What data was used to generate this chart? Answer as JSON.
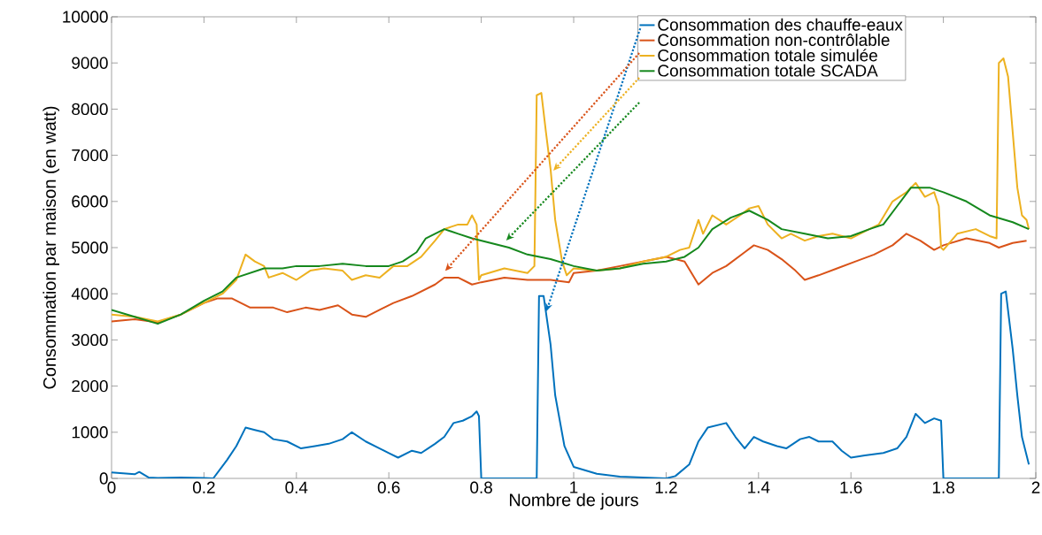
{
  "chart_data": {
    "type": "line",
    "xlabel": "Nombre de jours",
    "ylabel": "Consommation par maison (en watt)",
    "xlim": [
      0,
      2
    ],
    "ylim": [
      0,
      10000
    ],
    "xticks": [
      0,
      0.2,
      0.4,
      0.6,
      0.8,
      1,
      1.2,
      1.4,
      1.6,
      1.8,
      2
    ],
    "yticks": [
      0,
      1000,
      2000,
      3000,
      4000,
      5000,
      6000,
      7000,
      8000,
      9000,
      10000
    ],
    "legend": "top right",
    "series": [
      {
        "name": "Consommation des chauffe-eaux",
        "color": "#0072bd",
        "x": [
          0,
          0.05,
          0.06,
          0.08,
          0.1,
          0.15,
          0.2,
          0.22,
          0.25,
          0.27,
          0.29,
          0.31,
          0.33,
          0.35,
          0.38,
          0.41,
          0.44,
          0.47,
          0.5,
          0.52,
          0.55,
          0.58,
          0.6,
          0.62,
          0.65,
          0.67,
          0.7,
          0.72,
          0.74,
          0.76,
          0.78,
          0.79,
          0.795,
          0.8,
          0.92,
          0.925,
          0.935,
          0.95,
          0.96,
          0.98,
          1.0,
          1.05,
          1.1,
          1.15,
          1.2,
          1.22,
          1.25,
          1.27,
          1.29,
          1.31,
          1.33,
          1.35,
          1.37,
          1.39,
          1.41,
          1.44,
          1.46,
          1.49,
          1.51,
          1.53,
          1.56,
          1.58,
          1.6,
          1.63,
          1.67,
          1.7,
          1.72,
          1.74,
          1.76,
          1.78,
          1.795,
          1.8,
          1.92,
          1.925,
          1.935,
          1.95,
          1.96,
          1.97,
          1.985
        ],
        "values": [
          130,
          90,
          140,
          20,
          10,
          20,
          10,
          0,
          400,
          700,
          1100,
          1050,
          1000,
          850,
          800,
          650,
          700,
          750,
          850,
          1000,
          800,
          650,
          550,
          450,
          600,
          550,
          750,
          900,
          1200,
          1250,
          1350,
          1450,
          1350,
          0,
          0,
          3950,
          3950,
          2900,
          1800,
          700,
          250,
          100,
          40,
          20,
          0,
          50,
          300,
          800,
          1100,
          1150,
          1200,
          900,
          650,
          900,
          800,
          700,
          650,
          850,
          900,
          800,
          800,
          600,
          450,
          500,
          550,
          650,
          900,
          1400,
          1200,
          1300,
          1250,
          0,
          0,
          4000,
          4050,
          2800,
          1800,
          900,
          300
        ]
      },
      {
        "name": "Consommation non-contrôlable",
        "color": "#d95319",
        "x": [
          0,
          0.05,
          0.1,
          0.15,
          0.2,
          0.23,
          0.26,
          0.3,
          0.35,
          0.38,
          0.42,
          0.45,
          0.49,
          0.52,
          0.55,
          0.58,
          0.61,
          0.65,
          0.7,
          0.72,
          0.75,
          0.78,
          0.8,
          0.85,
          0.9,
          0.95,
          0.99,
          1.0,
          1.05,
          1.1,
          1.15,
          1.2,
          1.24,
          1.27,
          1.3,
          1.33,
          1.37,
          1.39,
          1.42,
          1.45,
          1.48,
          1.5,
          1.53,
          1.57,
          1.61,
          1.65,
          1.69,
          1.72,
          1.75,
          1.78,
          1.8,
          1.85,
          1.9,
          1.92,
          1.95,
          1.98
        ],
        "values": [
          3400,
          3450,
          3380,
          3550,
          3800,
          3900,
          3900,
          3700,
          3700,
          3600,
          3700,
          3650,
          3750,
          3550,
          3500,
          3650,
          3800,
          3950,
          4200,
          4350,
          4350,
          4200,
          4250,
          4350,
          4300,
          4300,
          4250,
          4450,
          4500,
          4600,
          4700,
          4800,
          4700,
          4200,
          4450,
          4600,
          4900,
          5050,
          4950,
          4750,
          4500,
          4300,
          4400,
          4550,
          4700,
          4850,
          5050,
          5300,
          5150,
          4950,
          5050,
          5200,
          5100,
          5000,
          5100,
          5150
        ]
      },
      {
        "name": "Consommation totale simulée",
        "color": "#edb120",
        "x": [
          0,
          0.05,
          0.1,
          0.15,
          0.2,
          0.24,
          0.27,
          0.29,
          0.31,
          0.33,
          0.34,
          0.37,
          0.4,
          0.43,
          0.46,
          0.5,
          0.52,
          0.55,
          0.58,
          0.61,
          0.64,
          0.67,
          0.7,
          0.72,
          0.75,
          0.77,
          0.78,
          0.79,
          0.795,
          0.8,
          0.85,
          0.9,
          0.915,
          0.92,
          0.93,
          0.94,
          0.95,
          0.96,
          0.975,
          0.985,
          1.0,
          1.05,
          1.1,
          1.15,
          1.2,
          1.23,
          1.25,
          1.27,
          1.28,
          1.3,
          1.33,
          1.36,
          1.38,
          1.4,
          1.42,
          1.45,
          1.47,
          1.5,
          1.53,
          1.56,
          1.6,
          1.63,
          1.66,
          1.69,
          1.72,
          1.74,
          1.76,
          1.78,
          1.79,
          1.795,
          1.8,
          1.83,
          1.87,
          1.9,
          1.915,
          1.92,
          1.93,
          1.94,
          1.95,
          1.96,
          1.97,
          1.98,
          1.985
        ],
        "values": [
          3550,
          3500,
          3400,
          3550,
          3800,
          4000,
          4300,
          4850,
          4700,
          4600,
          4350,
          4450,
          4300,
          4500,
          4550,
          4500,
          4300,
          4400,
          4350,
          4600,
          4600,
          4800,
          5150,
          5400,
          5500,
          5500,
          5700,
          5500,
          4300,
          4400,
          4550,
          4450,
          4600,
          8300,
          8350,
          7500,
          6700,
          5600,
          4700,
          4400,
          4550,
          4500,
          4550,
          4700,
          4800,
          4950,
          5000,
          5600,
          5300,
          5700,
          5500,
          5700,
          5850,
          5900,
          5500,
          5200,
          5300,
          5150,
          5250,
          5300,
          5200,
          5350,
          5500,
          6000,
          6200,
          6400,
          6100,
          6200,
          5900,
          5000,
          4950,
          5300,
          5400,
          5250,
          5200,
          9000,
          9100,
          8700,
          7500,
          6300,
          5700,
          5600,
          5400
        ]
      },
      {
        "name": "Consommation totale SCADA",
        "color": "#15881d",
        "x": [
          0,
          0.05,
          0.1,
          0.15,
          0.2,
          0.24,
          0.27,
          0.3,
          0.33,
          0.37,
          0.4,
          0.45,
          0.5,
          0.55,
          0.6,
          0.63,
          0.66,
          0.68,
          0.72,
          0.75,
          0.78,
          0.82,
          0.86,
          0.9,
          0.95,
          1.0,
          1.05,
          1.1,
          1.15,
          1.2,
          1.24,
          1.27,
          1.3,
          1.34,
          1.38,
          1.42,
          1.45,
          1.5,
          1.55,
          1.6,
          1.64,
          1.67,
          1.7,
          1.73,
          1.77,
          1.8,
          1.85,
          1.9,
          1.95,
          1.985
        ],
        "values": [
          3650,
          3500,
          3350,
          3550,
          3850,
          4050,
          4350,
          4450,
          4550,
          4550,
          4600,
          4600,
          4650,
          4600,
          4600,
          4700,
          4900,
          5200,
          5400,
          5300,
          5200,
          5100,
          5000,
          4850,
          4750,
          4600,
          4500,
          4550,
          4650,
          4700,
          4800,
          5000,
          5400,
          5650,
          5800,
          5600,
          5400,
          5300,
          5200,
          5250,
          5400,
          5500,
          5900,
          6300,
          6300,
          6200,
          6000,
          5700,
          5550,
          5400
        ]
      }
    ]
  }
}
